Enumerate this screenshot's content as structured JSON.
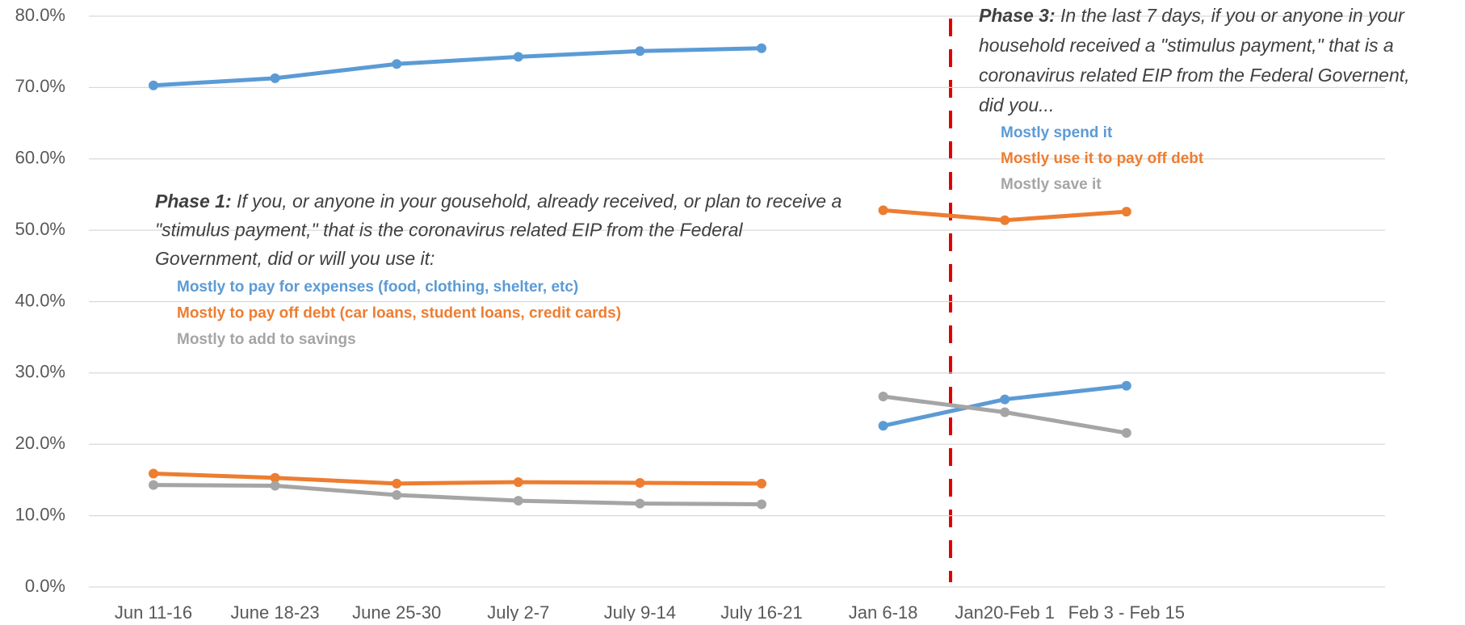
{
  "chart_data": {
    "type": "line",
    "categories": [
      "Jun 11-16",
      "June 18-23",
      "June 25-30",
      "July 2-7",
      "July 9-14",
      "July 16-21",
      "Jan 6-18",
      "Jan20-Feb 1",
      "Feb 3 - Feb 15"
    ],
    "series": [
      {
        "name": "Mostly to pay for expenses (food, clothing, shelter, etc)",
        "color": "#5b9bd5",
        "values": [
          70.3,
          71.3,
          73.3,
          74.3,
          75.1,
          75.5,
          null,
          null,
          null
        ]
      },
      {
        "name": "Mostly to pay off debt (car loans, student loans, credit cards)",
        "color": "#ed7d31",
        "values": [
          15.9,
          15.3,
          14.5,
          14.7,
          14.6,
          14.5,
          null,
          null,
          null
        ]
      },
      {
        "name": "Mostly to add to savings",
        "color": "#a5a5a5",
        "values": [
          14.3,
          14.2,
          12.9,
          12.1,
          11.7,
          11.6,
          null,
          null,
          null
        ]
      },
      {
        "name": "Mostly spend it",
        "color": "#5b9bd5",
        "values": [
          null,
          null,
          null,
          null,
          null,
          null,
          22.6,
          26.3,
          28.2
        ]
      },
      {
        "name": "Mostly use it to pay off debt",
        "color": "#ed7d31",
        "values": [
          null,
          null,
          null,
          null,
          null,
          null,
          52.8,
          51.4,
          52.6
        ]
      },
      {
        "name": "Mostly save it",
        "color": "#a5a5a5",
        "values": [
          null,
          null,
          null,
          null,
          null,
          null,
          26.7,
          24.5,
          21.6
        ]
      }
    ],
    "ylim": [
      0,
      80
    ],
    "yticks": [
      {
        "value": 0,
        "label": "0.0%"
      },
      {
        "value": 10,
        "label": "10.0%"
      },
      {
        "value": 20,
        "label": "20.0%"
      },
      {
        "value": 30,
        "label": "30.0%"
      },
      {
        "value": 40,
        "label": "40.0%"
      },
      {
        "value": 50,
        "label": "50.0%"
      },
      {
        "value": 60,
        "label": "60.0%"
      },
      {
        "value": 70,
        "label": "70.0%"
      },
      {
        "value": 80,
        "label": "80.0%"
      }
    ],
    "grid": true,
    "annotations": [
      {
        "heading": "Phase 1:",
        "lines": [
          " If you, or anyone in your gousehold, already received, or plan to receive a",
          "\"stimulus payment,\" that is the coronavirus related EIP from the Federal",
          "Government, did or will you use it:"
        ]
      },
      {
        "heading": "Phase 3:",
        "lines": [
          " In the last 7 days, if you or anyone in your",
          "household received a \"stimulus payment,\" that is a",
          "coronavirus related EIP from the Federal Governent,",
          "did you..."
        ]
      }
    ]
  }
}
